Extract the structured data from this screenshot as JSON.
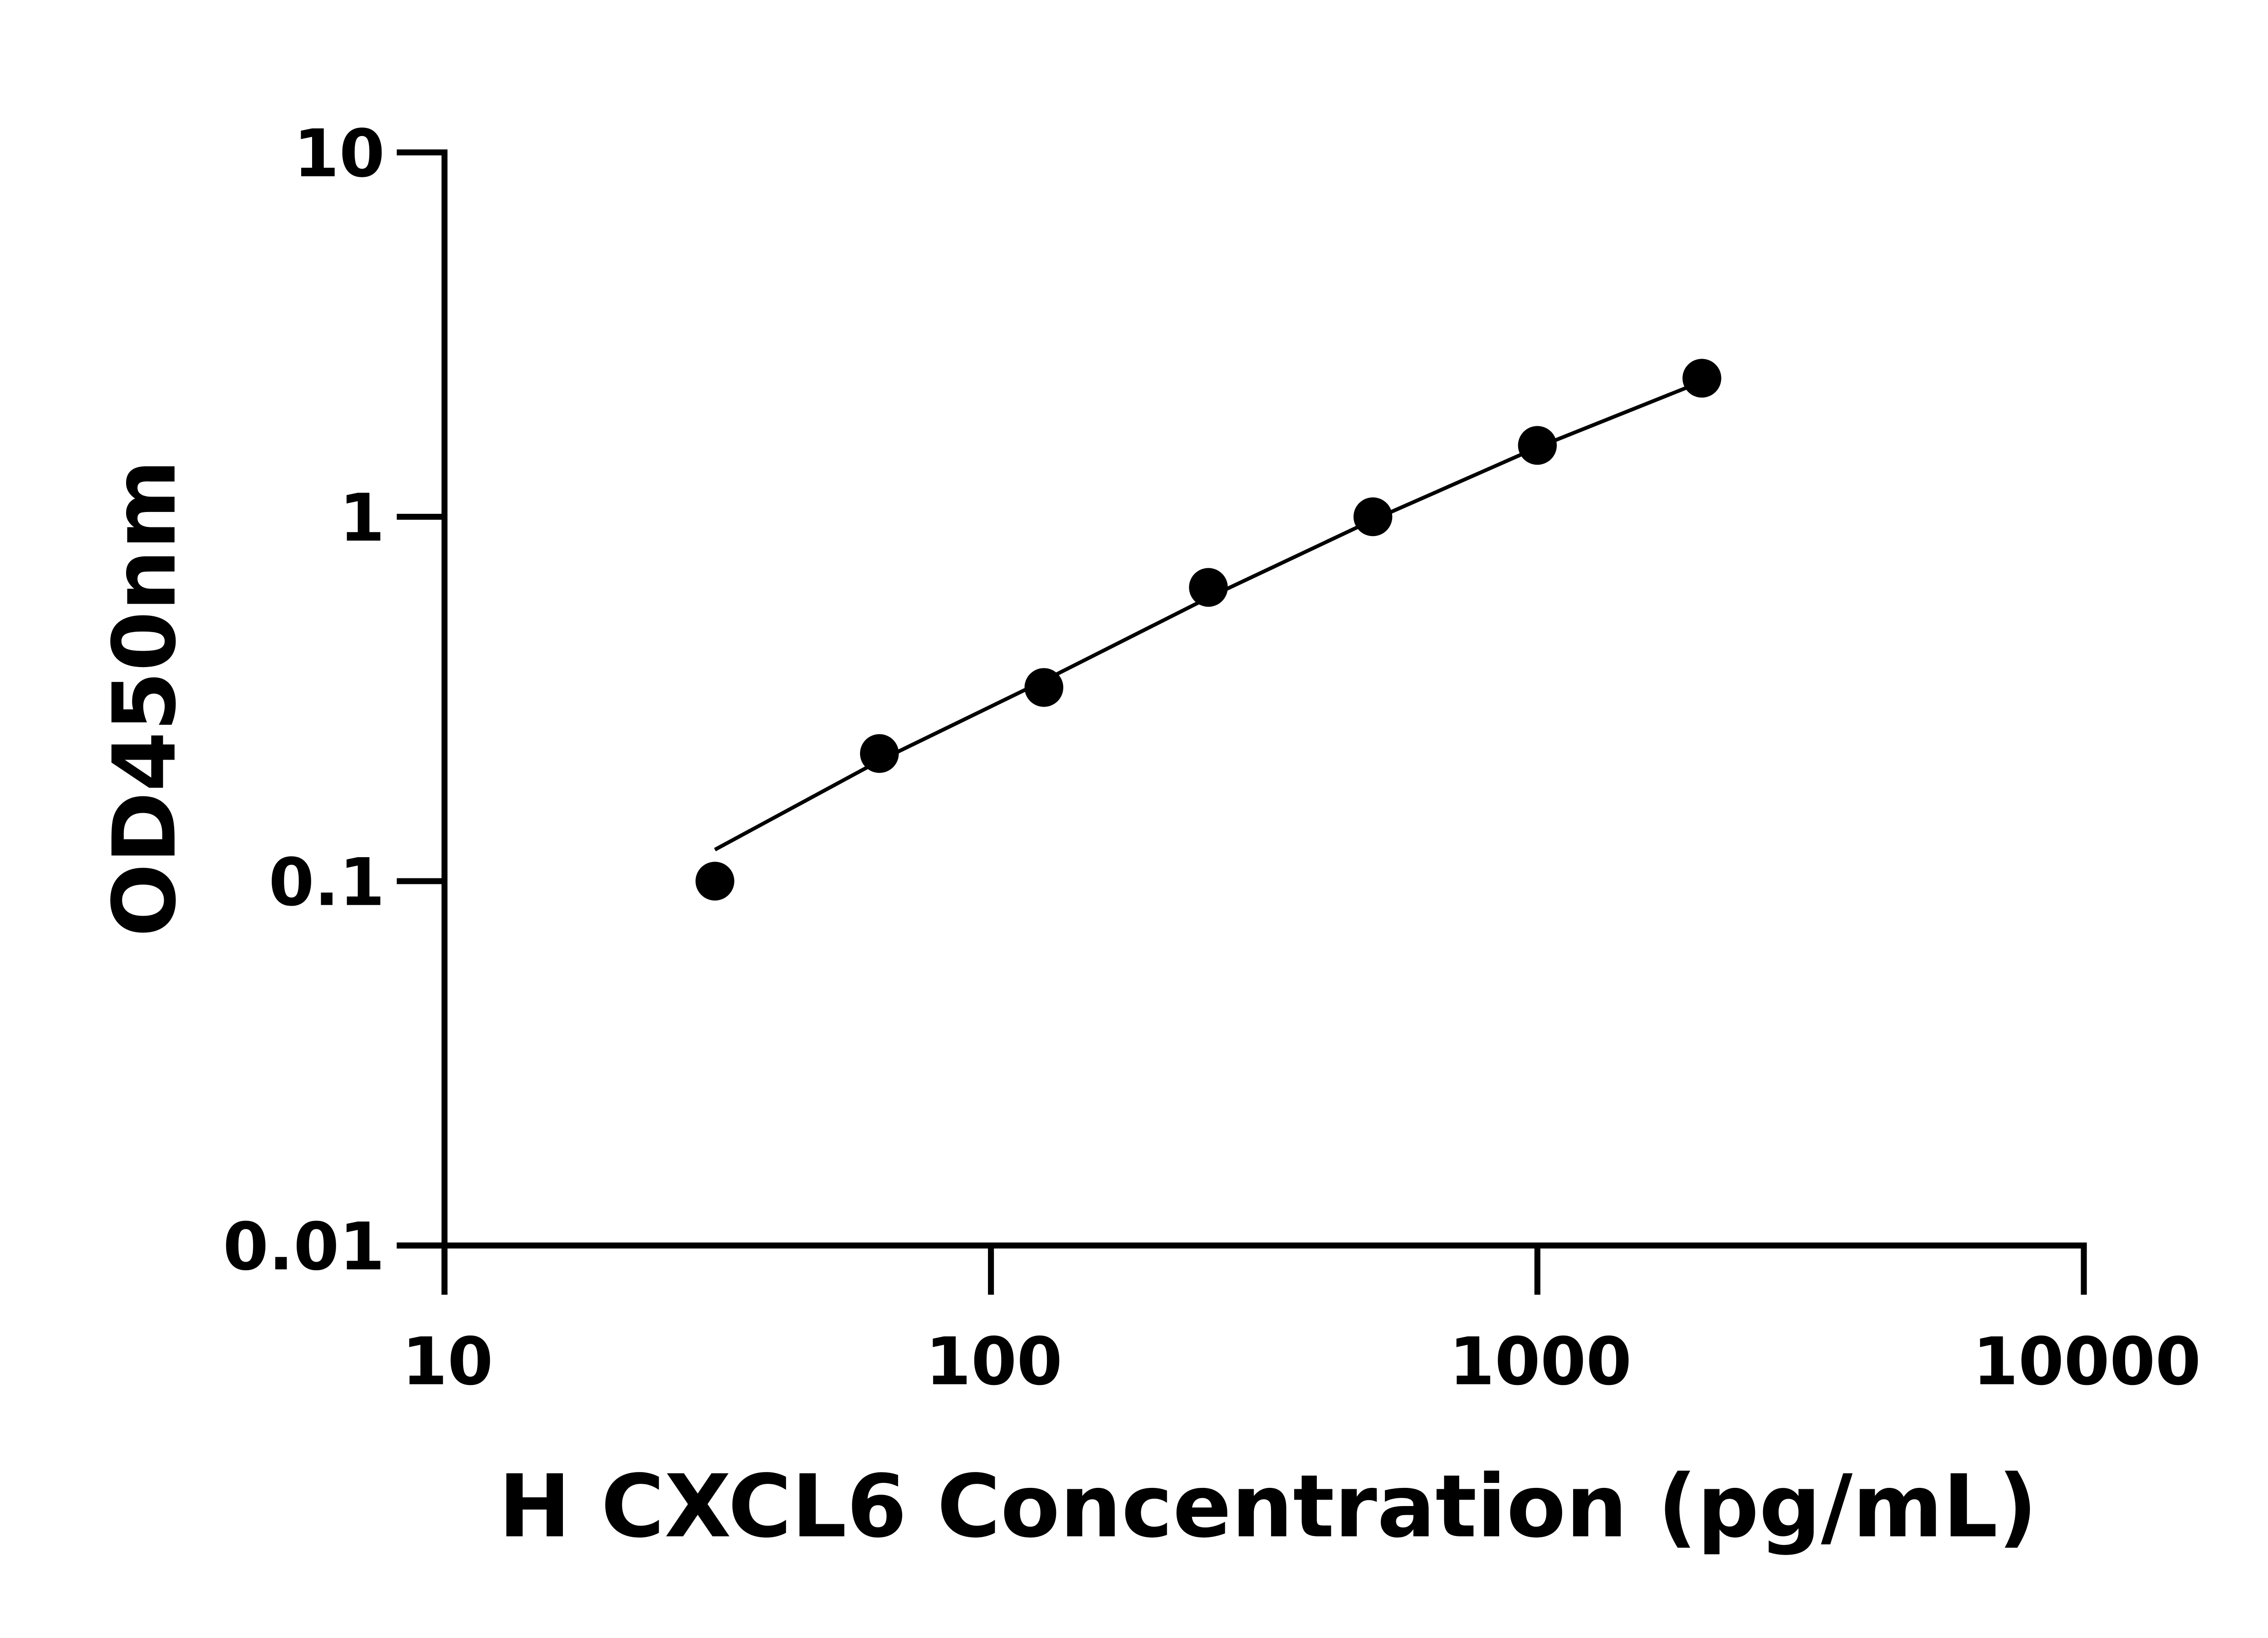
{
  "chart_data": {
    "type": "scatter",
    "title": "",
    "xlabel": "H CXCL6 Concentration (pg/mL)",
    "ylabel": "OD450nm",
    "xscale": "log",
    "yscale": "log",
    "xlim": [
      10,
      10000
    ],
    "ylim": [
      0.01,
      10
    ],
    "xticks": [
      "10",
      "100",
      "1000",
      "10000"
    ],
    "yticks": [
      "0.01",
      "0.1",
      "1",
      "10"
    ],
    "grid": false,
    "legend": "none",
    "marker_color": "#000000",
    "line_color": "#000000",
    "series": [
      {
        "x": [
          31.25,
          62.5,
          125,
          250,
          500,
          1000,
          2000
        ],
        "y": [
          0.1,
          0.224,
          0.34,
          0.64,
          1.0,
          1.57,
          2.4
        ]
      }
    ],
    "fit_curve": {
      "x": [
        31.25,
        62.5,
        125,
        250,
        500,
        1000,
        2000
      ],
      "y": [
        0.122,
        0.214,
        0.355,
        0.6,
        0.98,
        1.55,
        2.35
      ]
    }
  }
}
